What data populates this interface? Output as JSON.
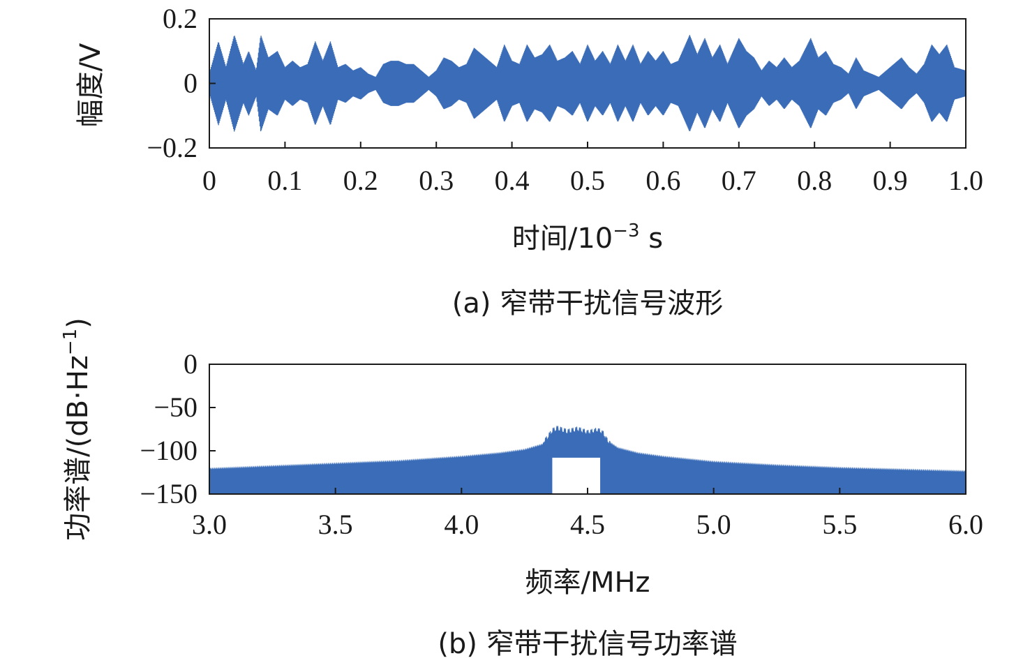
{
  "chart_data": [
    {
      "type": "line",
      "ylabel": "幅度/V",
      "xlabel_main": "时间/10",
      "xlabel_sup": "−3",
      "xlabel_tail": " s",
      "caption": "(a) 窄带干扰信号波形",
      "xlim": [
        0,
        1.0
      ],
      "ylim": [
        -0.2,
        0.2
      ],
      "xticks": [
        "0",
        "0.1",
        "0.2",
        "0.3",
        "0.4",
        "0.5",
        "0.6",
        "0.7",
        "0.8",
        "0.9",
        "1.0"
      ],
      "xtick_values": [
        0,
        0.1,
        0.2,
        0.3,
        0.4,
        0.5,
        0.6,
        0.7,
        0.8,
        0.9,
        1.0
      ],
      "yticks": [
        "0.2",
        "0",
        "−0.2"
      ],
      "ytick_values": [
        0.2,
        0,
        -0.2
      ],
      "series_color": "#3a6cb8",
      "envelope": {
        "x": [
          0.0,
          0.012,
          0.022,
          0.033,
          0.045,
          0.052,
          0.062,
          0.068,
          0.078,
          0.09,
          0.1,
          0.11,
          0.12,
          0.13,
          0.14,
          0.15,
          0.16,
          0.17,
          0.18,
          0.19,
          0.2,
          0.21,
          0.22,
          0.23,
          0.24,
          0.25,
          0.26,
          0.27,
          0.28,
          0.29,
          0.3,
          0.31,
          0.32,
          0.33,
          0.34,
          0.35,
          0.36,
          0.37,
          0.38,
          0.39,
          0.4,
          0.41,
          0.42,
          0.43,
          0.44,
          0.45,
          0.46,
          0.47,
          0.48,
          0.49,
          0.5,
          0.51,
          0.52,
          0.53,
          0.54,
          0.55,
          0.56,
          0.57,
          0.58,
          0.59,
          0.6,
          0.61,
          0.62,
          0.635,
          0.645,
          0.655,
          0.665,
          0.675,
          0.685,
          0.7,
          0.71,
          0.72,
          0.73,
          0.74,
          0.75,
          0.76,
          0.77,
          0.78,
          0.795,
          0.805,
          0.815,
          0.825,
          0.835,
          0.845,
          0.855,
          0.865,
          0.875,
          0.885,
          0.895,
          0.905,
          0.915,
          0.925,
          0.935,
          0.945,
          0.955,
          0.965,
          0.975,
          0.985,
          1.0
        ],
        "amplitude": [
          0.03,
          0.13,
          0.05,
          0.15,
          0.06,
          0.1,
          0.04,
          0.15,
          0.08,
          0.1,
          0.05,
          0.07,
          0.05,
          0.06,
          0.13,
          0.07,
          0.13,
          0.05,
          0.06,
          0.04,
          0.05,
          0.03,
          0.02,
          0.06,
          0.07,
          0.07,
          0.06,
          0.06,
          0.04,
          0.02,
          0.04,
          0.08,
          0.07,
          0.05,
          0.06,
          0.11,
          0.09,
          0.07,
          0.05,
          0.12,
          0.07,
          0.06,
          0.12,
          0.08,
          0.09,
          0.12,
          0.07,
          0.08,
          0.1,
          0.06,
          0.12,
          0.07,
          0.1,
          0.06,
          0.12,
          0.07,
          0.12,
          0.06,
          0.1,
          0.07,
          0.1,
          0.06,
          0.07,
          0.15,
          0.09,
          0.14,
          0.08,
          0.12,
          0.06,
          0.14,
          0.1,
          0.08,
          0.04,
          0.07,
          0.05,
          0.08,
          0.05,
          0.07,
          0.14,
          0.08,
          0.1,
          0.06,
          0.05,
          0.03,
          0.08,
          0.04,
          0.03,
          0.02,
          0.04,
          0.06,
          0.08,
          0.05,
          0.03,
          0.06,
          0.12,
          0.09,
          0.12,
          0.05,
          0.04
        ]
      }
    },
    {
      "type": "area",
      "ylabel_main": "功率谱/(dB·Hz",
      "ylabel_sup": "−1",
      "ylabel_tail": ")",
      "xlabel": "频率/MHz",
      "caption": "(b) 窄带干扰信号功率谱",
      "xlim": [
        3.0,
        6.0
      ],
      "ylim": [
        -150,
        0
      ],
      "xticks": [
        "3.0",
        "3.5",
        "4.0",
        "4.5",
        "5.0",
        "5.5",
        "6.0"
      ],
      "xtick_values": [
        3.0,
        3.5,
        4.0,
        4.5,
        5.0,
        5.5,
        6.0
      ],
      "yticks": [
        "0",
        "−50",
        "−100",
        "−150"
      ],
      "ytick_values": [
        0,
        -50,
        -100,
        -150
      ],
      "series_color": "#3a6cb8",
      "spectrum": {
        "x": [
          3.0,
          3.25,
          3.5,
          3.75,
          4.0,
          4.15,
          4.25,
          4.32,
          4.36,
          4.38,
          4.42,
          4.46,
          4.5,
          4.54,
          4.56,
          4.58,
          4.62,
          4.7,
          4.8,
          5.0,
          5.25,
          5.5,
          5.75,
          6.0
        ],
        "db": [
          -122,
          -119,
          -116,
          -113,
          -108,
          -104,
          -100,
          -94,
          -78,
          -75,
          -79,
          -76,
          -80,
          -77,
          -80,
          -90,
          -98,
          -104,
          -108,
          -114,
          -118,
          -121,
          -123,
          -125
        ]
      },
      "notch": {
        "x_start": 4.36,
        "x_end": 4.55,
        "floor_db": -108
      }
    }
  ]
}
